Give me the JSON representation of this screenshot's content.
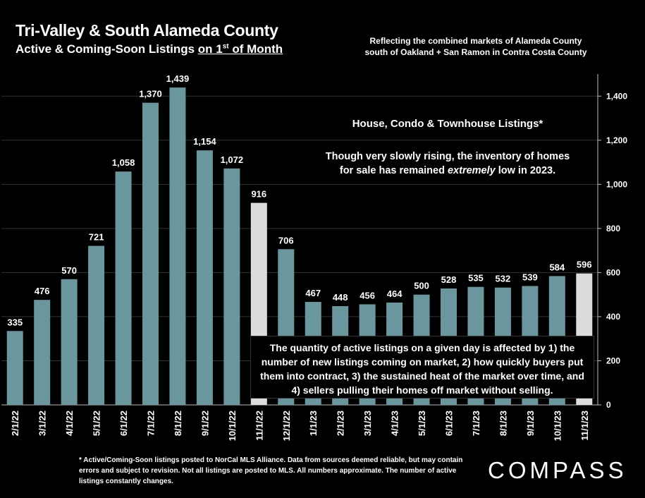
{
  "header": {
    "title": "Tri-Valley & South Alameda County",
    "subtitle_prefix": "Active & Coming-Soon Listings ",
    "subtitle_underlined": "on 1",
    "subtitle_sup": "st",
    "subtitle_suffix": " of Month",
    "reflect_line1": "Reflecting the combined markets of Alameda County",
    "reflect_line2": "south of Oakland + San Ramon in Contra Costa County"
  },
  "annotations": {
    "heading": "House, Condo & Townhouse Listings*",
    "note_line1": "Though very slowly rising, the inventory of homes",
    "note_line2_a": "for sale has remained ",
    "note_line2_em": "extremely",
    "note_line2_b": " low in 2023.",
    "box_text": "The quantity of active listings on a given day is affected by 1) the number of new listings coming on market, 2) how quickly buyers put them into contract, 3) the sustained heat of the market over time, and 4) sellers pulling their homes off market without selling."
  },
  "footnote": "* Active/Coming-Soon listings posted to NorCal MLS Alliance.  Data from sources deemed reliable, but may contain errors and subject to revision.  Not all listings are posted to MLS. All numbers approximate. The number of active listings constantly changes.",
  "logo": "COMPASS",
  "colors": {
    "bar": "#6a979e",
    "highlight": "#dcdcdc",
    "background": "#000000",
    "grid": "#333333"
  },
  "chart_data": {
    "type": "bar",
    "categories": [
      "2/1/22",
      "3/1/22",
      "4/1/22",
      "5/1/22",
      "6/1/22",
      "7/1/22",
      "8/1/22",
      "9/1/22",
      "10/1/22",
      "11/1/22",
      "12/1/22",
      "1/1/23",
      "2/1/23",
      "3/1/23",
      "4/1/23",
      "5/1/23",
      "6/1/23",
      "7/1/23",
      "8/1/23",
      "9/1/23",
      "10/1/23",
      "11/1/23"
    ],
    "values": [
      335,
      476,
      570,
      721,
      1058,
      1370,
      1439,
      1154,
      1072,
      916,
      706,
      467,
      448,
      456,
      464,
      500,
      528,
      535,
      532,
      539,
      584,
      596
    ],
    "labels": [
      "335",
      "476",
      "570",
      "721",
      "1,058",
      "1,370",
      "1,439",
      "1,154",
      "1,072",
      "916",
      "706",
      "467",
      "448",
      "456",
      "464",
      "500",
      "528",
      "535",
      "532",
      "539",
      "584",
      "596"
    ],
    "highlighted": [
      "11/1/22",
      "11/1/23"
    ],
    "ylim": [
      0,
      1500
    ],
    "yticks": [
      0,
      200,
      400,
      600,
      800,
      1000,
      1200,
      1400
    ],
    "ytick_labels": [
      "0",
      "200",
      "400",
      "600",
      "800",
      "1,000",
      "1,200",
      "1,400"
    ],
    "yaxis_side": "right",
    "grid": true
  }
}
